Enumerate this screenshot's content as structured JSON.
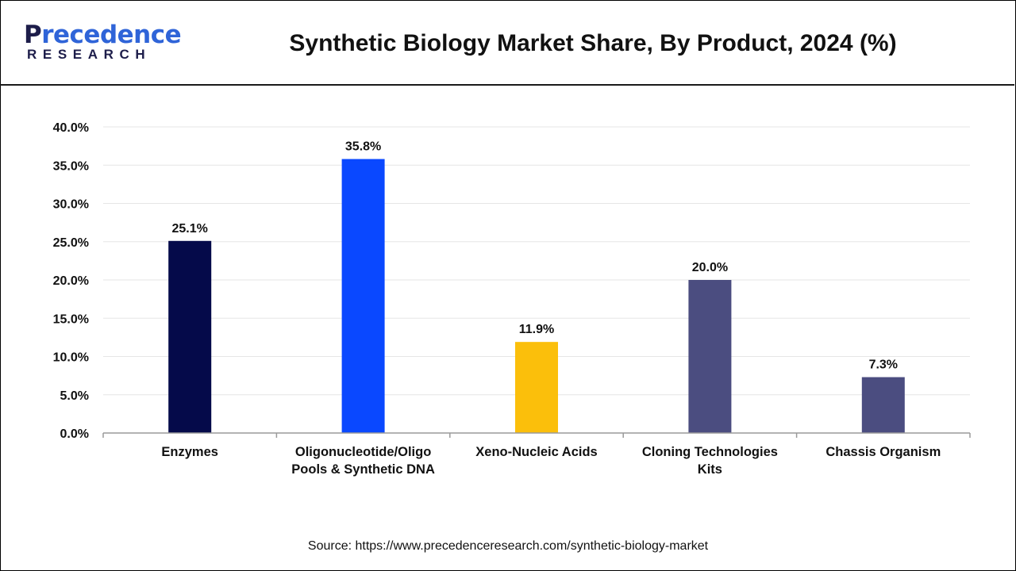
{
  "logo": {
    "word_a": "P",
    "word_b": "recedence",
    "sub": "RESEARCH",
    "colors": {
      "navy": "#1d1d4a",
      "blue": "#2f64d8"
    }
  },
  "title": "Synthetic Biology Market Share, By Product, 2024 (%)",
  "source": "Source: https://www.precedenceresearch.com/synthetic-biology-market",
  "chart_data": {
    "type": "bar",
    "title": "Synthetic Biology Market Share, By Product, 2024 (%)",
    "xlabel": "",
    "ylabel": "",
    "categories": [
      "Enzymes",
      "Oligonucleotide/Oligo Pools & Synthetic DNA",
      "Xeno-Nucleic Acids",
      "Cloning Technologies Kits",
      "Chassis Organism"
    ],
    "category_label_lines": [
      [
        "Enzymes"
      ],
      [
        "Oligonucleotide/Oligo",
        "Pools & Synthetic DNA"
      ],
      [
        "Xeno-Nucleic Acids"
      ],
      [
        "Cloning Technologies",
        "Kits"
      ],
      [
        "Chassis Organism"
      ]
    ],
    "values": [
      25.1,
      35.8,
      11.9,
      20.0,
      7.3
    ],
    "value_labels": [
      "25.1%",
      "35.8%",
      "11.9%",
      "20.0%",
      "7.3%"
    ],
    "bar_colors": [
      "#050a4a",
      "#0a48ff",
      "#fbbf0b",
      "#4b4d80",
      "#4b4d80"
    ],
    "ylim": [
      0,
      40
    ],
    "yticks": [
      0,
      5,
      10,
      15,
      20,
      25,
      30,
      35,
      40
    ],
    "ytick_labels": [
      "0.0%",
      "5.0%",
      "10.0%",
      "15.0%",
      "20.0%",
      "25.0%",
      "30.0%",
      "35.0%",
      "40.0%"
    ],
    "grid": true,
    "legend": "none"
  }
}
